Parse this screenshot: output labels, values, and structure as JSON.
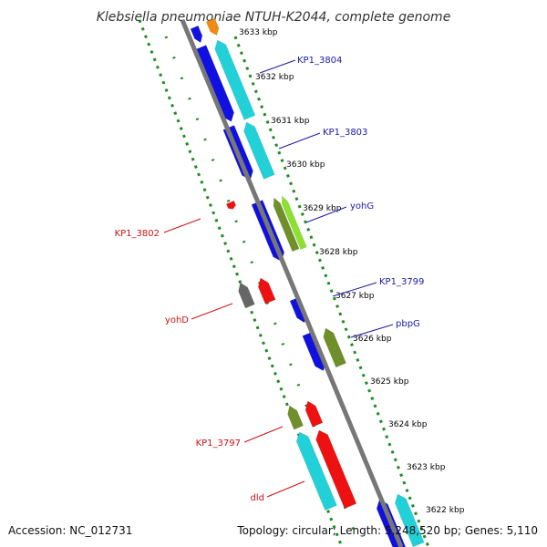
{
  "title": "Klebsiella pneumoniae NTUH-K2044, complete genome",
  "accession": "Accession: NC_012731",
  "summary": "Topology: circular; Length: 5,248,520 bp; Genes: 5,110",
  "ticks": [
    {
      "label": "3633 kbp"
    },
    {
      "label": "3632 kbp"
    },
    {
      "label": "3631 kbp"
    },
    {
      "label": "3630 kbp"
    },
    {
      "label": "3629 kbp"
    },
    {
      "label": "3628 kbp"
    },
    {
      "label": "3627 kbp"
    },
    {
      "label": "3626 kbp"
    },
    {
      "label": "3625 kbp"
    },
    {
      "label": "3624 kbp"
    },
    {
      "label": "3623 kbp"
    },
    {
      "label": "3622 kbp"
    }
  ],
  "gene_labels": [
    {
      "text": "KP1_3804",
      "strand": "forward"
    },
    {
      "text": "KP1_3803",
      "strand": "forward"
    },
    {
      "text": "yohG",
      "strand": "forward"
    },
    {
      "text": "KP1_3799",
      "strand": "forward"
    },
    {
      "text": "pbpG",
      "strand": "forward"
    },
    {
      "text": "KP1_3802",
      "strand": "reverse"
    },
    {
      "text": "yohD",
      "strand": "reverse"
    },
    {
      "text": "KP1_3797",
      "strand": "reverse"
    },
    {
      "text": "dld",
      "strand": "reverse"
    }
  ],
  "colors": {
    "forward_label": "#1a1aa8",
    "reverse_label": "#cc1111",
    "cds_forward": "#1010e0",
    "cds_reverse": "#ee1111",
    "cyan": "#22d0d8",
    "olive": "#6f8f2a",
    "lime": "#8ee030",
    "gray": "#666666",
    "orange": "#f08a10",
    "backbone": "#777777",
    "dots": "#1f8a1f"
  }
}
